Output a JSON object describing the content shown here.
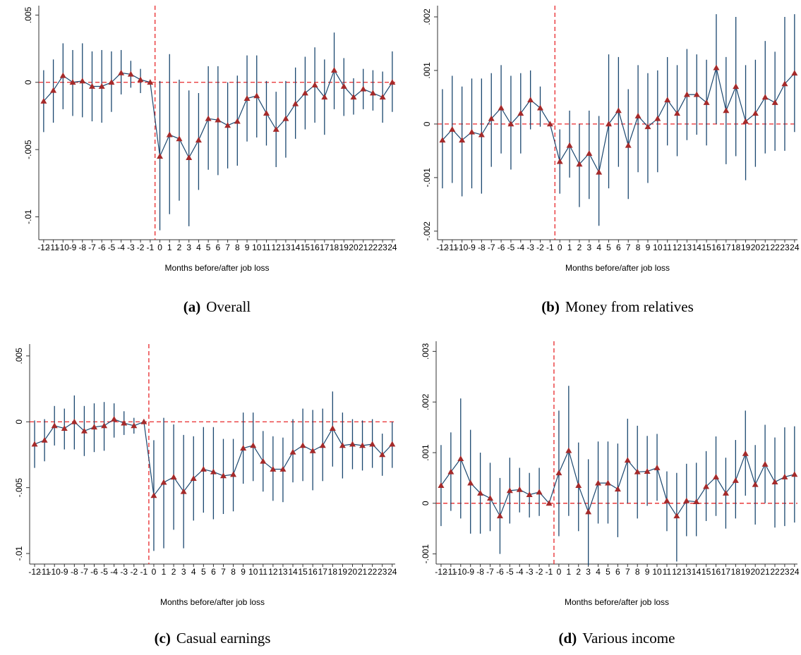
{
  "chart_data": [
    {
      "type": "event-study",
      "caption_label": "(a)",
      "caption": "Overall",
      "x_label": "Months before/after job loss",
      "x": [
        -12,
        -11,
        -10,
        -9,
        -8,
        -7,
        -6,
        -5,
        -4,
        -3,
        -2,
        -1,
        0,
        1,
        2,
        3,
        4,
        5,
        6,
        7,
        8,
        9,
        10,
        11,
        12,
        13,
        14,
        15,
        16,
        17,
        18,
        19,
        20,
        21,
        22,
        23,
        24
      ],
      "values": [
        -0.0014,
        -0.0006,
        0.0005,
        0.0,
        0.0001,
        -0.0003,
        -0.0003,
        0.0,
        0.0007,
        0.0006,
        0.0002,
        0,
        -0.0055,
        -0.0039,
        -0.0042,
        -0.0056,
        -0.0043,
        -0.0027,
        -0.0028,
        -0.0032,
        -0.0029,
        -0.0012,
        -0.001,
        -0.0023,
        -0.0035,
        -0.0027,
        -0.0016,
        -0.0008,
        -0.0002,
        -0.0011,
        0.0009,
        -0.0003,
        -0.0011,
        -0.0005,
        -0.0008,
        -0.0011,
        0.0
      ],
      "lower": [
        -0.0037,
        -0.003,
        -0.002,
        -0.0025,
        -0.0026,
        -0.0029,
        -0.003,
        -0.0022,
        -0.0009,
        -0.0004,
        -0.0008,
        null,
        -0.011,
        -0.0098,
        -0.0088,
        -0.0107,
        -0.008,
        -0.0065,
        -0.0069,
        -0.0064,
        -0.0062,
        -0.0044,
        -0.0041,
        -0.0047,
        -0.0063,
        -0.0056,
        -0.0042,
        -0.0035,
        -0.003,
        -0.0039,
        -0.002,
        -0.0025,
        -0.0024,
        -0.002,
        -0.0021,
        -0.003,
        -0.0022
      ],
      "upper": [
        0.0009,
        0.0017,
        0.0029,
        0.0024,
        0.0029,
        0.0023,
        0.0024,
        0.0023,
        0.0024,
        0.0016,
        0.001,
        null,
        0.0001,
        0.0021,
        0.0002,
        -0.0006,
        -0.0008,
        0.0012,
        0.0012,
        0.0,
        0.0005,
        0.002,
        0.002,
        0.0001,
        -0.0007,
        0.0001,
        0.0011,
        0.0019,
        0.0026,
        0.0017,
        0.0037,
        0.0018,
        0.0003,
        0.001,
        0.0009,
        0.0008,
        0.0023
      ],
      "xlim": [
        -12.5,
        24.3
      ],
      "ylim": [
        -0.0117,
        0.0057
      ],
      "xticks": [
        -12,
        -11,
        -10,
        -9,
        -8,
        -7,
        -6,
        -5,
        -4,
        -3,
        -2,
        -1,
        0,
        1,
        2,
        3,
        4,
        5,
        6,
        7,
        8,
        9,
        10,
        11,
        12,
        13,
        14,
        15,
        16,
        17,
        18,
        19,
        20,
        21,
        22,
        23,
        24
      ],
      "yticks": [
        {
          "value": 0.005,
          "label": ".005"
        },
        0,
        {
          "value": -0.005,
          "label": "-.005"
        },
        {
          "value": -0.01,
          "label": "-.01"
        }
      ],
      "vline": -0.5,
      "hline": 0,
      "color": "#1a476f",
      "marker_color": "#a52a2a",
      "ref_color": "#e8272a"
    },
    {
      "type": "event-study",
      "caption_label": "(b)",
      "caption": "Money from relatives",
      "x_label": "Months before/after job loss",
      "x": [
        -12,
        -11,
        -10,
        -9,
        -8,
        -7,
        -6,
        -5,
        -4,
        -3,
        -2,
        -1,
        0,
        1,
        2,
        3,
        4,
        5,
        6,
        7,
        8,
        9,
        10,
        11,
        12,
        13,
        14,
        15,
        16,
        17,
        18,
        19,
        20,
        21,
        22,
        23,
        24
      ],
      "values": [
        -0.0003,
        -0.0001,
        -0.0003,
        -0.00015,
        -0.0002,
        0.0001,
        0.0003,
        0.0,
        0.0002,
        0.00045,
        0.0003,
        0,
        -0.0007,
        -0.0004,
        -0.00075,
        -0.00055,
        -0.0009,
        0.0,
        0.00025,
        -0.0004,
        0.00015,
        -5e-05,
        0.0001,
        0.00045,
        0.0002,
        0.00055,
        0.00055,
        0.0004,
        0.00105,
        0.00025,
        0.0007,
        5e-05,
        0.0002,
        0.0005,
        0.0004,
        0.00075,
        0.00095
      ],
      "lower": [
        -0.0012,
        -0.0011,
        -0.00135,
        -0.0012,
        -0.0013,
        -0.0008,
        -0.00055,
        -0.00085,
        -0.00055,
        -0.0001,
        -5e-05,
        null,
        -0.0013,
        -0.001,
        -0.00155,
        -0.0014,
        -0.0019,
        -0.0012,
        -0.0008,
        -0.0014,
        -0.0009,
        -0.0011,
        -0.0009,
        -0.0004,
        -0.0006,
        -0.0003,
        -0.0002,
        -0.0004,
        0.0,
        -0.00075,
        -0.0006,
        -0.00105,
        -0.0008,
        -0.00055,
        -0.0005,
        -0.0005,
        -0.00015
      ],
      "upper": [
        0.00065,
        0.0009,
        0.0007,
        0.00085,
        0.00085,
        0.00095,
        0.0011,
        0.0009,
        0.00095,
        0.001,
        0.0007,
        null,
        -0.0001,
        0.00025,
        0.0,
        0.00025,
        0.00015,
        0.0013,
        0.00125,
        0.00065,
        0.0011,
        0.00095,
        0.001,
        0.00125,
        0.0011,
        0.0014,
        0.0013,
        0.0012,
        0.00205,
        0.00125,
        0.002,
        0.0011,
        0.0012,
        0.00155,
        0.00135,
        0.002,
        0.00205
      ],
      "xlim": [
        -12.5,
        24.3
      ],
      "ylim": [
        -0.00216,
        0.00221
      ],
      "xticks": [
        -12,
        -11,
        -10,
        -9,
        -8,
        -7,
        -6,
        -5,
        -4,
        -3,
        -2,
        -1,
        0,
        1,
        2,
        3,
        4,
        5,
        6,
        7,
        8,
        9,
        10,
        11,
        12,
        13,
        14,
        15,
        16,
        17,
        18,
        19,
        20,
        21,
        22,
        23,
        24
      ],
      "yticks": [
        {
          "value": 0.002,
          "label": ".002"
        },
        {
          "value": 0.001,
          "label": ".001"
        },
        0,
        {
          "value": -0.001,
          "label": "-.001"
        },
        {
          "value": -0.002,
          "label": "-.002"
        }
      ],
      "vline": -0.5,
      "hline": 0,
      "color": "#1a476f",
      "marker_color": "#a52a2a",
      "ref_color": "#e8272a"
    },
    {
      "type": "event-study",
      "caption_label": "(c)",
      "caption": "Casual earnings",
      "x_label": "Months before/after job loss",
      "x": [
        -12,
        -11,
        -10,
        -9,
        -8,
        -7,
        -6,
        -5,
        -4,
        -3,
        -2,
        -1,
        0,
        1,
        2,
        3,
        4,
        5,
        6,
        7,
        8,
        9,
        10,
        11,
        12,
        13,
        14,
        15,
        16,
        17,
        18,
        19,
        20,
        21,
        22,
        23,
        24
      ],
      "values": [
        -0.0017,
        -0.0014,
        -0.0003,
        -0.0005,
        0.0,
        -0.0007,
        -0.0004,
        -0.0003,
        0.0002,
        -0.0001,
        -0.0003,
        0,
        -0.0056,
        -0.0046,
        -0.0042,
        -0.0053,
        -0.0043,
        -0.0036,
        -0.0038,
        -0.0041,
        -0.004,
        -0.002,
        -0.0018,
        -0.003,
        -0.0036,
        -0.0036,
        -0.0023,
        -0.0018,
        -0.0022,
        -0.0018,
        -0.0005,
        -0.0018,
        -0.0017,
        -0.0018,
        -0.0017,
        -0.0025,
        -0.0017
      ],
      "lower": [
        -0.0035,
        -0.003,
        -0.0018,
        -0.0021,
        -0.0021,
        -0.0026,
        -0.0023,
        -0.0022,
        -0.0012,
        -0.001,
        -0.0009,
        null,
        -0.0098,
        -0.0096,
        -0.0082,
        -0.0096,
        -0.0075,
        -0.0069,
        -0.0074,
        -0.007,
        -0.0068,
        -0.0047,
        -0.0045,
        -0.0053,
        -0.006,
        -0.0061,
        -0.0046,
        -0.0045,
        -0.0052,
        -0.0045,
        -0.0034,
        -0.0043,
        -0.0036,
        -0.0037,
        -0.0035,
        -0.0041,
        -0.0035
      ],
      "upper": [
        0.0001,
        0.0002,
        0.0012,
        0.001,
        0.002,
        0.0012,
        0.0014,
        0.0015,
        0.0014,
        0.0008,
        0.0003,
        null,
        -0.0014,
        0.0003,
        -0.0002,
        -0.001,
        -0.0011,
        -0.0004,
        -0.0004,
        -0.0013,
        -0.0013,
        0.0007,
        0.0007,
        -0.0007,
        -0.0011,
        -0.0012,
        0.0002,
        0.001,
        0.0009,
        0.001,
        0.0023,
        0.0007,
        0.0002,
        0.0001,
        0.0002,
        -0.0009,
        0.0
      ],
      "xlim": [
        -12.5,
        24.3
      ],
      "ylim": [
        -0.0108,
        0.0059
      ],
      "xticks": [
        -12,
        -11,
        -10,
        -9,
        -8,
        -7,
        -6,
        -5,
        -4,
        -3,
        -2,
        -1,
        0,
        1,
        2,
        3,
        4,
        5,
        6,
        7,
        8,
        9,
        10,
        11,
        12,
        13,
        14,
        15,
        16,
        17,
        18,
        19,
        20,
        21,
        22,
        23,
        24
      ],
      "yticks": [
        {
          "value": 0.005,
          "label": ".005"
        },
        0,
        {
          "value": -0.005,
          "label": "-.005"
        },
        {
          "value": -0.01,
          "label": "-.01"
        }
      ],
      "vline": -0.5,
      "hline": 0,
      "color": "#1a476f",
      "marker_color": "#a52a2a",
      "ref_color": "#e8272a"
    },
    {
      "type": "event-study",
      "caption_label": "(d)",
      "caption": "Various income",
      "x_label": "Months before/after job loss",
      "x": [
        -12,
        -11,
        -10,
        -9,
        -8,
        -7,
        -6,
        -5,
        -4,
        -3,
        -2,
        -1,
        0,
        1,
        2,
        3,
        4,
        5,
        6,
        7,
        8,
        9,
        10,
        11,
        12,
        13,
        14,
        15,
        16,
        17,
        18,
        19,
        20,
        21,
        22,
        23,
        24
      ],
      "values": [
        0.00035,
        0.00062,
        0.00088,
        0.0004,
        0.0002,
        0.0001,
        -0.00025,
        0.00025,
        0.00027,
        0.00017,
        0.00022,
        0,
        0.0006,
        0.00104,
        0.00035,
        -0.00017,
        0.0004,
        0.0004,
        0.00028,
        0.00085,
        0.00062,
        0.00063,
        0.0007,
        5e-05,
        -0.00025,
        5e-05,
        3e-05,
        0.00033,
        0.00052,
        0.0002,
        0.00045,
        0.00098,
        0.00037,
        0.00077,
        0.00042,
        0.00052,
        0.00057
      ],
      "lower": [
        -0.00045,
        -0.00015,
        -0.0003,
        -0.0006,
        -0.0006,
        -0.00055,
        -0.001,
        -0.0004,
        -0.00018,
        -0.00028,
        -0.00025,
        null,
        -0.00065,
        -0.00025,
        -0.00055,
        -0.00123,
        -0.0004,
        -0.0004,
        -0.00067,
        0.0,
        -0.0003,
        -5e-05,
        5e-05,
        -0.00055,
        -0.00115,
        -0.00065,
        -0.00065,
        -0.00035,
        -0.00025,
        -0.0005,
        -0.0003,
        0.00015,
        -0.00042,
        0.0,
        -0.00048,
        -0.00045,
        -0.00038
      ],
      "upper": [
        0.00115,
        0.0014,
        0.00207,
        0.00145,
        0.001,
        0.0008,
        0.0005,
        0.0009,
        0.0007,
        0.0006,
        0.0007,
        null,
        0.00183,
        0.00232,
        0.0012,
        0.00087,
        0.00122,
        0.00122,
        0.00118,
        0.00167,
        0.00153,
        0.00133,
        0.00137,
        0.00063,
        0.0006,
        0.00078,
        0.0008,
        0.00103,
        0.00132,
        0.0009,
        0.00125,
        0.00183,
        0.00115,
        0.00155,
        0.0013,
        0.0015,
        0.00152
      ],
      "xlim": [
        -12.5,
        24.3
      ],
      "ylim": [
        -0.0012,
        0.0032
      ],
      "xticks": [
        -12,
        -11,
        -10,
        -9,
        -8,
        -7,
        -6,
        -5,
        -4,
        -3,
        -2,
        -1,
        0,
        1,
        2,
        3,
        4,
        5,
        6,
        7,
        8,
        9,
        10,
        11,
        12,
        13,
        14,
        15,
        16,
        17,
        18,
        19,
        20,
        21,
        22,
        23,
        24
      ],
      "yticks": [
        {
          "value": 0.003,
          "label": ".003"
        },
        {
          "value": 0.002,
          "label": ".002"
        },
        {
          "value": 0.001,
          "label": ".001"
        },
        0,
        {
          "value": -0.001,
          "label": "-.001"
        }
      ],
      "vline": -0.5,
      "hline": 0,
      "color": "#1a476f",
      "marker_color": "#a52a2a",
      "ref_color": "#e8272a"
    }
  ]
}
